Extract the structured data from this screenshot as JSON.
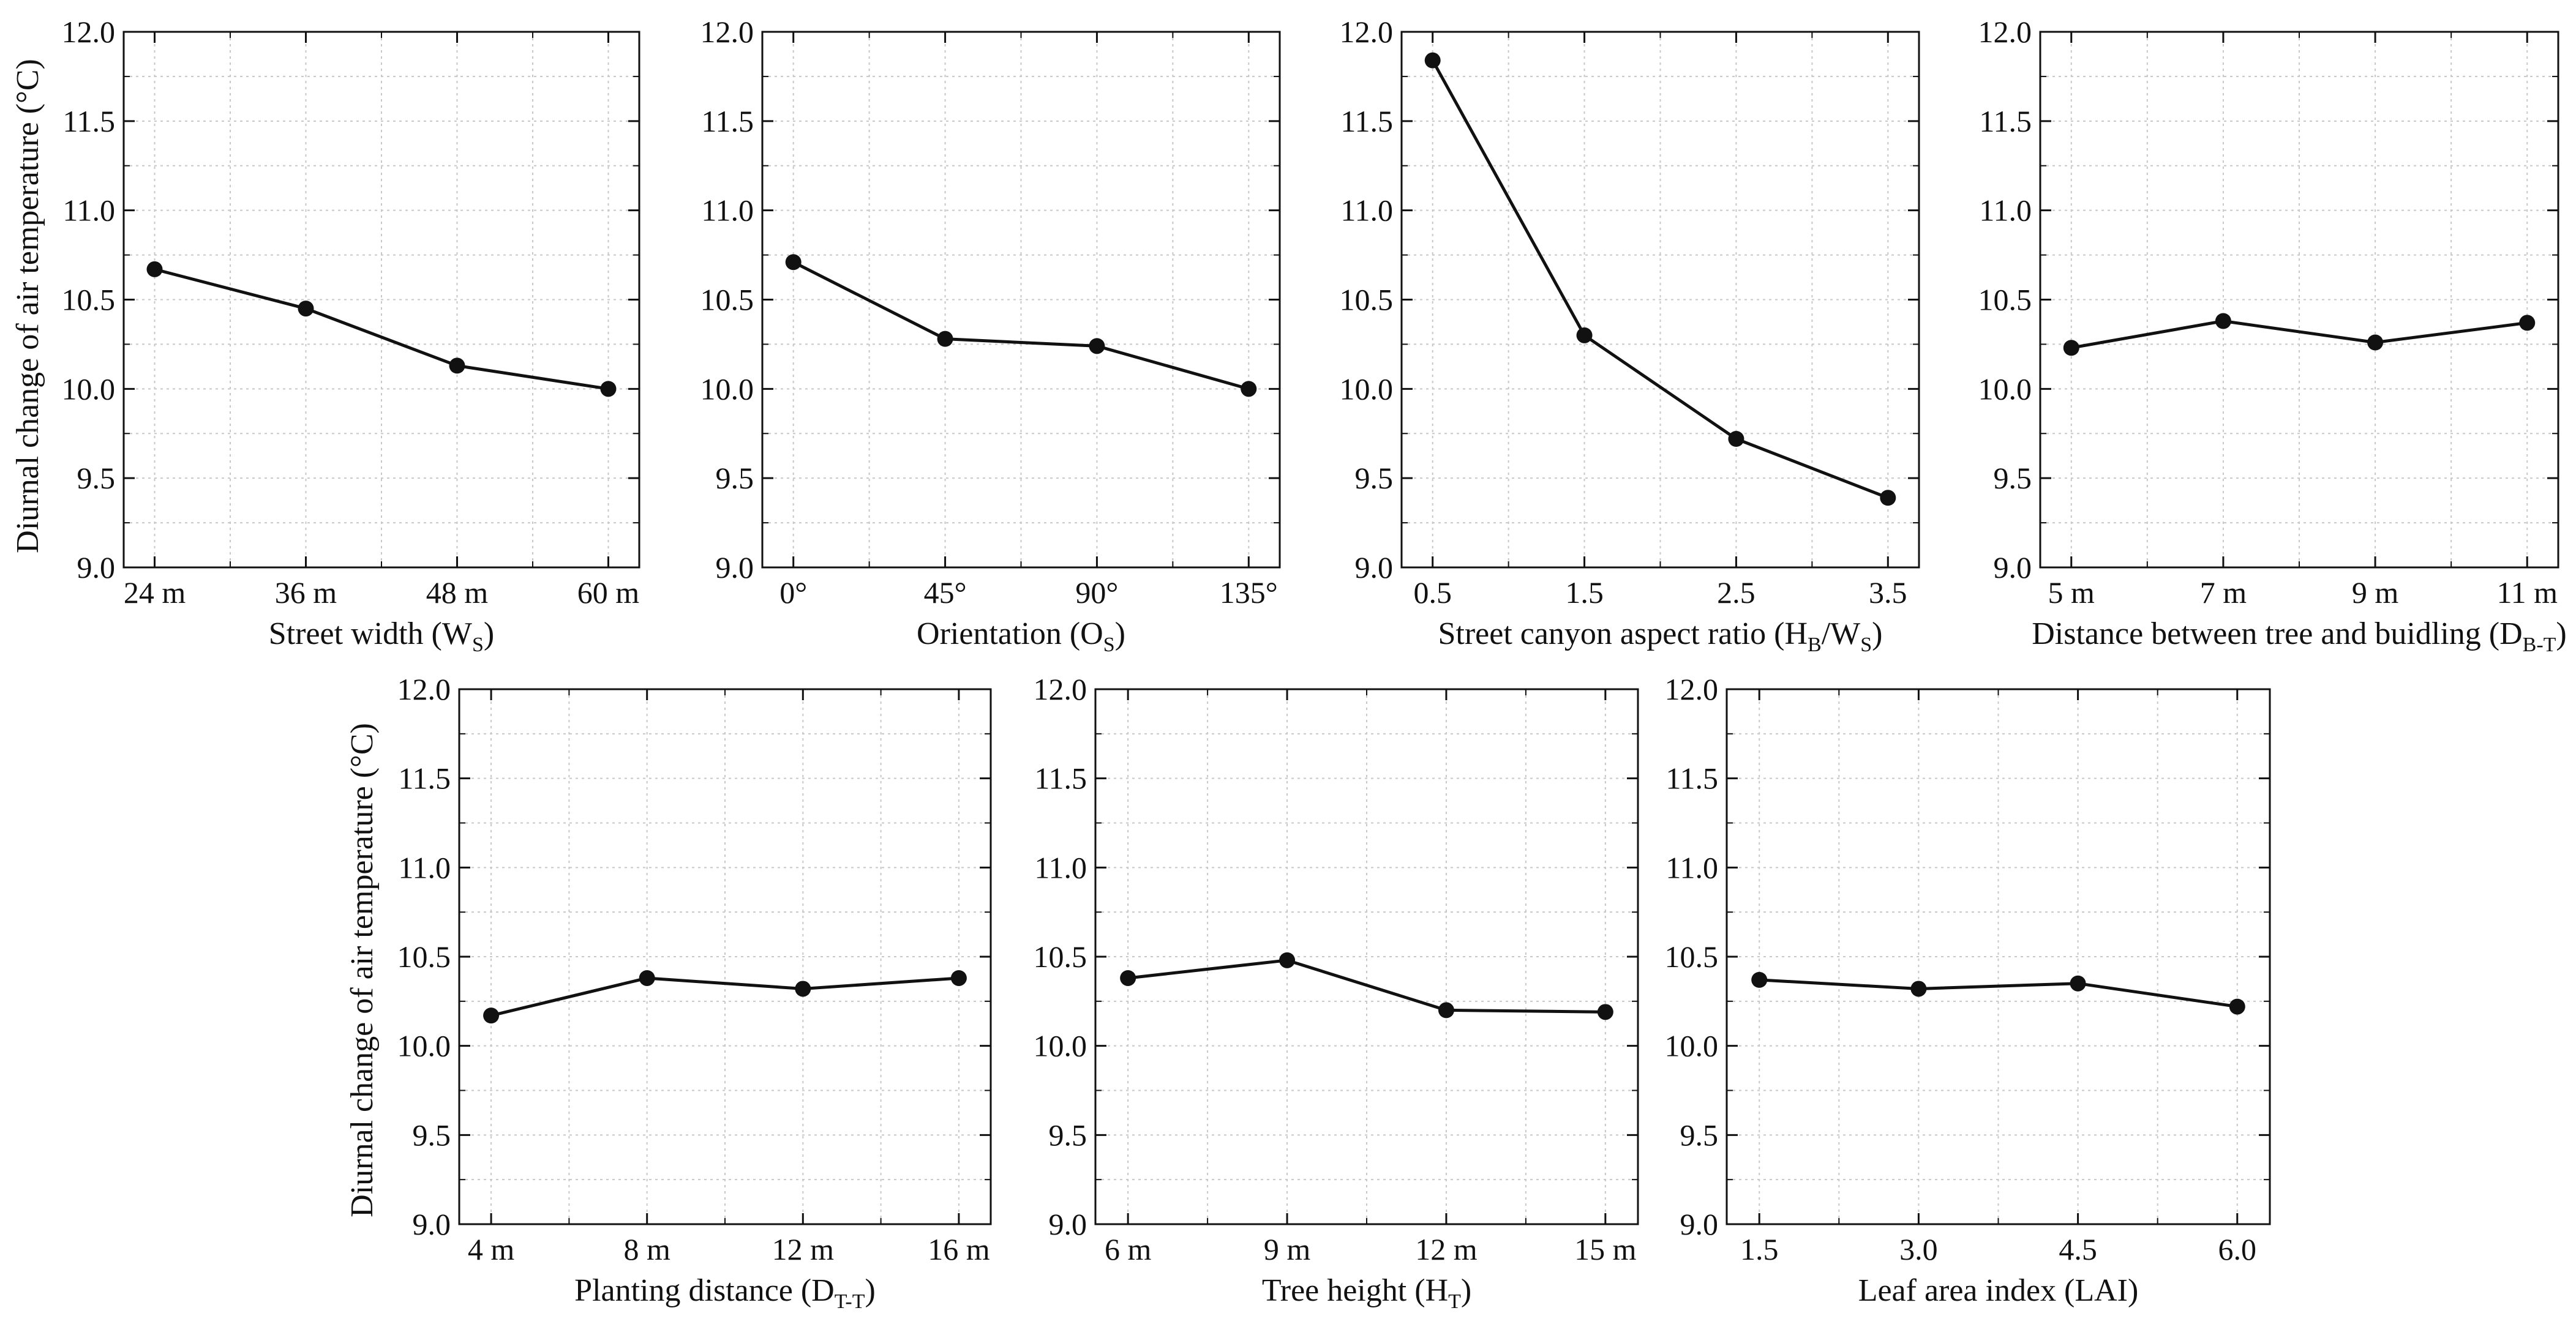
{
  "figure": {
    "ylabel": "Diurnal change of air temperature (°C)",
    "colors": {
      "line": "#111111",
      "grid": "#c8c8c8",
      "frame": "#111111",
      "background": "#ffffff"
    }
  },
  "chart_data": [
    {
      "type": "line",
      "title": "",
      "xlabel": "Street width (W",
      "xlabel_sub": "S",
      "xlabel_end": ")",
      "categories": [
        "24 m",
        "36 m",
        "48 m",
        "60 m"
      ],
      "values": [
        10.67,
        10.45,
        10.13,
        10.0
      ],
      "ylim": [
        9.0,
        12.0
      ],
      "yticks": [
        "9.0",
        "9.5",
        "10.0",
        "10.5",
        "11.0",
        "11.5",
        "12.0"
      ],
      "grid": true
    },
    {
      "type": "line",
      "title": "",
      "xlabel": "Orientation (O",
      "xlabel_sub": "S",
      "xlabel_end": ")",
      "categories": [
        "0°",
        "45°",
        "90°",
        "135°"
      ],
      "values": [
        10.71,
        10.28,
        10.24,
        10.0
      ],
      "ylim": [
        9.0,
        12.0
      ],
      "yticks": [
        "9.0",
        "9.5",
        "10.0",
        "10.5",
        "11.0",
        "11.5",
        "12.0"
      ],
      "grid": true
    },
    {
      "type": "line",
      "title": "",
      "xlabel": "Street canyon aspect ratio (H",
      "xlabel_sub": "B",
      "xlabel_mid": "/W",
      "xlabel_sub2": "S",
      "xlabel_end": ")",
      "categories": [
        "0.5",
        "1.5",
        "2.5",
        "3.5"
      ],
      "values": [
        11.84,
        10.3,
        9.72,
        9.39
      ],
      "ylim": [
        9.0,
        12.0
      ],
      "yticks": [
        "9.0",
        "9.5",
        "10.0",
        "10.5",
        "11.0",
        "11.5",
        "12.0"
      ],
      "grid": true
    },
    {
      "type": "line",
      "title": "",
      "xlabel": "Distance between tree and buidling (D",
      "xlabel_sub": "B-T",
      "xlabel_end": ")",
      "categories": [
        "5 m",
        "7 m",
        "9 m",
        "11 m"
      ],
      "values": [
        10.23,
        10.38,
        10.26,
        10.37
      ],
      "ylim": [
        9.0,
        12.0
      ],
      "yticks": [
        "9.0",
        "9.5",
        "10.0",
        "10.5",
        "11.0",
        "11.5",
        "12.0"
      ],
      "grid": true
    },
    {
      "type": "line",
      "title": "",
      "xlabel": "Planting distance (D",
      "xlabel_sub": "T-T",
      "xlabel_end": ")",
      "categories": [
        "4 m",
        "8 m",
        "12 m",
        "16 m"
      ],
      "values": [
        10.17,
        10.38,
        10.32,
        10.38
      ],
      "ylim": [
        9.0,
        12.0
      ],
      "yticks": [
        "9.0",
        "9.5",
        "10.0",
        "10.5",
        "11.0",
        "11.5",
        "12.0"
      ],
      "grid": true
    },
    {
      "type": "line",
      "title": "",
      "xlabel": "Tree height (H",
      "xlabel_sub": "T",
      "xlabel_end": ")",
      "categories": [
        "6 m",
        "9 m",
        "12 m",
        "15 m"
      ],
      "values": [
        10.38,
        10.48,
        10.2,
        10.19
      ],
      "ylim": [
        9.0,
        12.0
      ],
      "yticks": [
        "9.0",
        "9.5",
        "10.0",
        "10.5",
        "11.0",
        "11.5",
        "12.0"
      ],
      "grid": true
    },
    {
      "type": "line",
      "title": "",
      "xlabel": "Leaf area index (LAI)",
      "categories": [
        "1.5",
        "3.0",
        "4.5",
        "6.0"
      ],
      "values": [
        10.37,
        10.32,
        10.35,
        10.22
      ],
      "ylim": [
        9.0,
        12.0
      ],
      "yticks": [
        "9.0",
        "9.5",
        "10.0",
        "10.5",
        "11.0",
        "11.5",
        "12.0"
      ],
      "grid": true
    }
  ]
}
